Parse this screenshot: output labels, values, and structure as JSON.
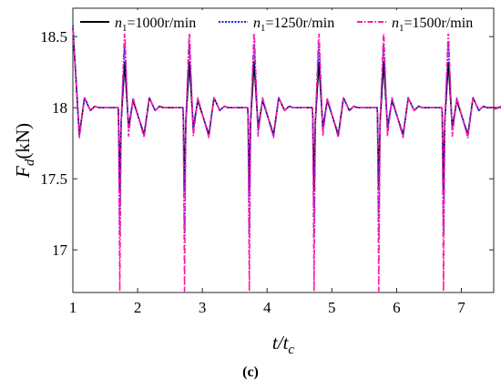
{
  "chart_data": {
    "type": "line",
    "xlabel": "t/t",
    "xlabel_sub": "c",
    "ylabel": "F",
    "ylabel_sub": "d",
    "ylabel_unit": "(kN)",
    "xlim": [
      1,
      7.5
    ],
    "ylim": [
      16.7,
      18.7
    ],
    "x_ticks": [
      1,
      2,
      3,
      4,
      5,
      6,
      7
    ],
    "y_ticks": [
      17,
      17.5,
      18,
      18.5
    ],
    "y_tick_labels": [
      "17",
      "17.5",
      "18",
      "18.5"
    ],
    "grid": false,
    "legend_position": "top",
    "series": [
      {
        "name_prefix": "n",
        "name_sub": "1",
        "name_suffix": "=1000r/min",
        "color": "#000000",
        "style": "solid",
        "first_value": 18.56,
        "baseline": 18.0,
        "cycle_values": {
          "first_dip": 17.81,
          "first_peak": 18.07,
          "spike_down": 17.42,
          "spike_up": 18.32,
          "second_dip": 17.86,
          "settle_peak": 18.05
        }
      },
      {
        "name_prefix": "n",
        "name_sub": "1",
        "name_suffix": "=1250r/min",
        "color": "#1a1aff",
        "style": "dotted",
        "first_value": 18.58,
        "baseline": 18.0,
        "cycle_values": {
          "first_dip": 17.8,
          "first_peak": 18.07,
          "spike_down": 17.1,
          "spike_up": 18.45,
          "second_dip": 17.84,
          "settle_peak": 18.06
        }
      },
      {
        "name_prefix": "n",
        "name_sub": "1",
        "name_suffix": "=1500r/min",
        "color": "#ff1aa8",
        "style": "dashdot",
        "first_value": 18.55,
        "baseline": 18.0,
        "cycle_values": {
          "first_dip": 17.79,
          "first_peak": 18.07,
          "spike_down": 16.71,
          "spike_up": 18.56,
          "second_dip": 17.8,
          "settle_peak": 18.07
        }
      }
    ]
  },
  "caption": "(c)"
}
